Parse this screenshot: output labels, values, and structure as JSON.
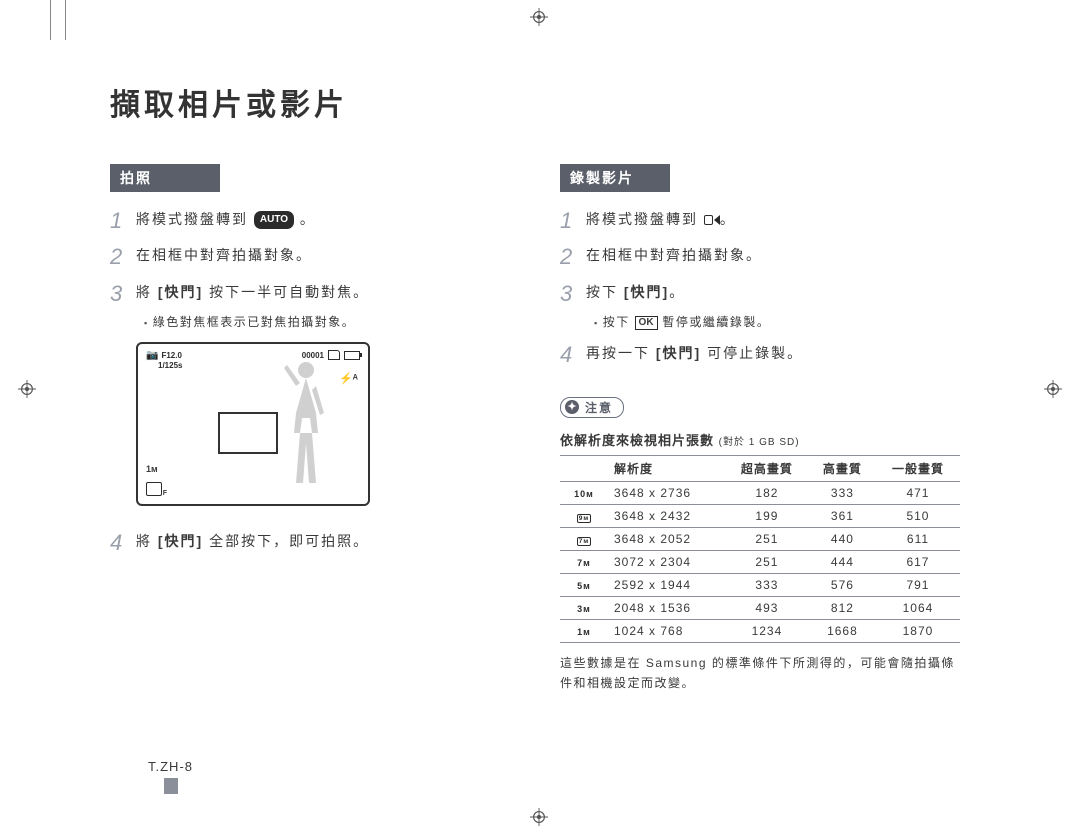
{
  "title": "擷取相片或影片",
  "left": {
    "heading": "拍照",
    "steps": [
      {
        "num": "1",
        "pre": "將模式撥盤轉到 ",
        "pill": "AUTO",
        "post": " 。"
      },
      {
        "num": "2",
        "pre": "在相框中對齊拍攝對象。"
      },
      {
        "num": "3",
        "pre": "將 ",
        "bold": "[快門]",
        "post": " 按下一半可自動對焦。"
      }
    ],
    "sub3": "綠色對焦框表示已對焦拍攝對象。",
    "lcd": {
      "topLeft1": "F12.0",
      "topLeft2": "1/125s",
      "counter": "00001",
      "flash": "⚡ᴬ",
      "mp": "1ᴍ"
    },
    "step4": {
      "num": "4",
      "pre": "將 ",
      "bold": "[快門]",
      "post": " 全部按下，即可拍照。"
    }
  },
  "right": {
    "heading": "錄製影片",
    "steps": [
      {
        "num": "1",
        "pre": "將模式撥盤轉到 ",
        "vidicon": true,
        "post": "。"
      },
      {
        "num": "2",
        "pre": "在相框中對齊拍攝對象。"
      },
      {
        "num": "3",
        "pre": "按下 ",
        "bold": "[快門]",
        "post": "。"
      }
    ],
    "sub3a": "按下 ",
    "sub3ok": "OK",
    "sub3b": " 暫停或繼續錄製。",
    "step4": {
      "num": "4",
      "pre": "再按一下 ",
      "bold": "[快門]",
      "post": " 可停止錄製。"
    },
    "noteLabel": "注意",
    "tableTitle": "依解析度來檢視相片張數",
    "tableTitleSub": "(對於 1 GB SD)",
    "headers": [
      "",
      "解析度",
      "超高畫質",
      "高畫質",
      "一般畫質"
    ],
    "rows": [
      {
        "icon": "10ᴍ",
        "res": "3648 x 2736",
        "a": "182",
        "b": "333",
        "c": "471"
      },
      {
        "icon": "box9",
        "res": "3648 x 2432",
        "a": "199",
        "b": "361",
        "c": "510"
      },
      {
        "icon": "box7",
        "res": "3648 x 2052",
        "a": "251",
        "b": "440",
        "c": "611"
      },
      {
        "icon": "7ᴍ",
        "res": "3072 x 2304",
        "a": "251",
        "b": "444",
        "c": "617"
      },
      {
        "icon": "5ᴍ",
        "res": "2592 x 1944",
        "a": "333",
        "b": "576",
        "c": "791"
      },
      {
        "icon": "3ᴍ",
        "res": "2048 x 1536",
        "a": "493",
        "b": "812",
        "c": "1064"
      },
      {
        "icon": "1ᴍ",
        "res": "1024 x 768",
        "a": "1234",
        "b": "1668",
        "c": "1870"
      }
    ],
    "footnote": "這些數據是在 Samsung 的標準條件下所測得的，可能會隨拍攝條件和相機設定而改變。"
  },
  "pageNum": "T.ZH-8"
}
